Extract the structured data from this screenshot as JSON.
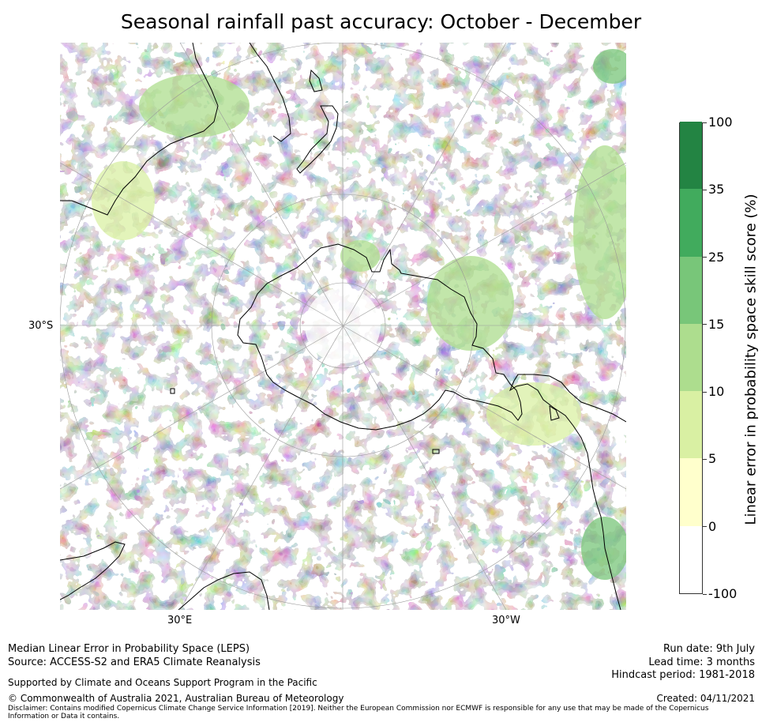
{
  "title": "Seasonal rainfall past accuracy: October - December",
  "map": {
    "projection": "south polar stereographic",
    "grid_labels": {
      "left": "30°S",
      "bottom_left": "30°E",
      "bottom_right": "30°W"
    },
    "fill_colors": [
      "#ffffff",
      "#ffffcc",
      "#d9f0a3",
      "#addd8e",
      "#78c679",
      "#41ab5d",
      "#238443"
    ]
  },
  "colorbar": {
    "label": "Linear error in probability space skill score (%)",
    "ticks": [
      "-100",
      "0",
      "5",
      "10",
      "15",
      "25",
      "35",
      "100"
    ],
    "colors": [
      "#ffffff",
      "#ffffcc",
      "#d9f0a3",
      "#addd8e",
      "#78c679",
      "#41ab5d",
      "#238443"
    ]
  },
  "footer": {
    "line1": "Median Linear Error in Probability Space (LEPS)",
    "line2": "Source: ACCESS-S2 and ERA5 Climate Reanalysis",
    "supported": "Supported by Climate and Oceans Support Program in the Pacific",
    "copyright": "© Commonwealth of Australia 2021, Australian Bureau of Meteorology",
    "disclaimer1": "Disclaimer: Contains modified Copernicus Climate Change Service Information [2019]. Neither the European Commission nor ECMWF is responsible for any use that may be made of the Copernicus",
    "disclaimer2": "Information or Data it contains.",
    "run_date": "Run date: 9th July",
    "lead_time": "Lead time: 3 months",
    "hindcast": "Hindcast period: 1981-2018",
    "created": "Created: 04/11/2021"
  }
}
